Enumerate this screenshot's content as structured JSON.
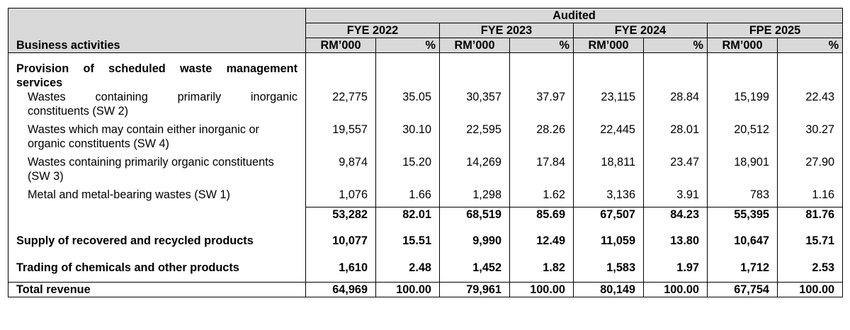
{
  "header": {
    "audited": "Audited",
    "business_activities": "Business activities",
    "periods": [
      "FYE 2022",
      "FYE 2023",
      "FYE 2024",
      "FPE 2025"
    ],
    "unit_rm": "RM’000",
    "unit_pct": "%"
  },
  "section1": {
    "title": "Provision of scheduled waste management services",
    "title_line1": "Provision of scheduled waste management",
    "title_line2": "services",
    "rows": [
      {
        "label_line1_words": [
          "Wastes",
          "containing",
          "primarily",
          "inorganic"
        ],
        "label_line2": "constituents (SW 2)",
        "values": [
          "22,775",
          "35.05",
          "30,357",
          "37.97",
          "23,115",
          "28.84",
          "15,199",
          "22.43"
        ]
      },
      {
        "label_line1": "Wastes which may contain either inorganic or",
        "label_line2": "organic constituents (SW 4)",
        "values": [
          "19,557",
          "30.10",
          "22,595",
          "28.26",
          "22,445",
          "28.01",
          "20,512",
          "30.27"
        ]
      },
      {
        "label_line1": "Wastes containing primarily organic constituents",
        "label_line2": "(SW 3)",
        "values": [
          "9,874",
          "15.20",
          "14,269",
          "17.84",
          "18,811",
          "23.47",
          "18,901",
          "27.90"
        ]
      },
      {
        "label_line1": "Metal and metal-bearing wastes (SW 1)",
        "values": [
          "1,076",
          "1.66",
          "1,298",
          "1.62",
          "3,136",
          "3.91",
          "783",
          "1.16"
        ]
      }
    ],
    "subtotal": [
      "53,282",
      "82.01",
      "68,519",
      "85.69",
      "67,507",
      "84.23",
      "55,395",
      "81.76"
    ]
  },
  "section2": {
    "label": "Supply of recovered and recycled products",
    "values": [
      "10,077",
      "15.51",
      "9,990",
      "12.49",
      "11,059",
      "13.80",
      "10,647",
      "15.71"
    ]
  },
  "section3": {
    "label": "Trading of chemicals and other products",
    "values": [
      "1,610",
      "2.48",
      "1,452",
      "1.82",
      "1,583",
      "1.97",
      "1,712",
      "2.53"
    ]
  },
  "total": {
    "label": "Total revenue",
    "values": [
      "64,969",
      "100.00",
      "79,961",
      "100.00",
      "80,149",
      "100.00",
      "67,754",
      "100.00"
    ]
  }
}
